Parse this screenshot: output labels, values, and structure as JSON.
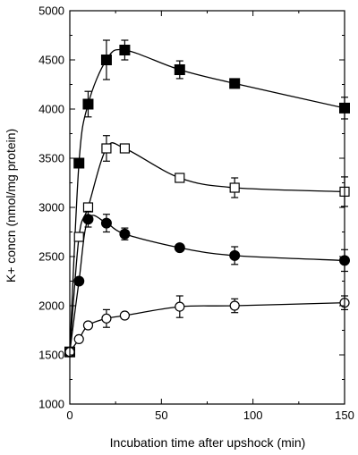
{
  "chart_data": {
    "type": "line",
    "title": "",
    "xlabel": "Incubation time after upshock (min)",
    "ylabel": "K+ concn (nmol/mg protein)",
    "xlim": [
      0,
      150
    ],
    "ylim": [
      1000,
      5000
    ],
    "x_ticks": [
      0,
      50,
      100,
      150
    ],
    "y_ticks": [
      1000,
      1500,
      2000,
      2500,
      3000,
      3500,
      4000,
      4500,
      5000
    ],
    "grid": false,
    "legend": "none",
    "series": [
      {
        "marker": "filled-square",
        "color": "#000000",
        "x": [
          0,
          5,
          10,
          20,
          30,
          60,
          90,
          150
        ],
        "y": [
          1530,
          3450,
          4050,
          4500,
          4600,
          4400,
          4260,
          4010
        ],
        "err": [
          0,
          0,
          130,
          200,
          100,
          90,
          0,
          110
        ]
      },
      {
        "marker": "open-square",
        "color": "#000000",
        "x": [
          0,
          5,
          10,
          20,
          30,
          60,
          90,
          150
        ],
        "y": [
          1530,
          2700,
          3000,
          3600,
          3600,
          3300,
          3200,
          3160
        ],
        "err": [
          0,
          0,
          0,
          130,
          0,
          0,
          100,
          150
        ]
      },
      {
        "marker": "filled-circle",
        "color": "#000000",
        "x": [
          0,
          5,
          10,
          20,
          30,
          60,
          90,
          150
        ],
        "y": [
          1530,
          2250,
          2880,
          2840,
          2730,
          2590,
          2510,
          2460
        ],
        "err": [
          0,
          0,
          80,
          90,
          60,
          0,
          90,
          110
        ]
      },
      {
        "marker": "open-circle",
        "color": "#000000",
        "x": [
          0,
          5,
          10,
          20,
          30,
          60,
          90,
          150
        ],
        "y": [
          1530,
          1660,
          1800,
          1870,
          1900,
          1990,
          2000,
          2030
        ],
        "err": [
          0,
          0,
          0,
          90,
          0,
          110,
          70,
          70
        ]
      }
    ]
  }
}
